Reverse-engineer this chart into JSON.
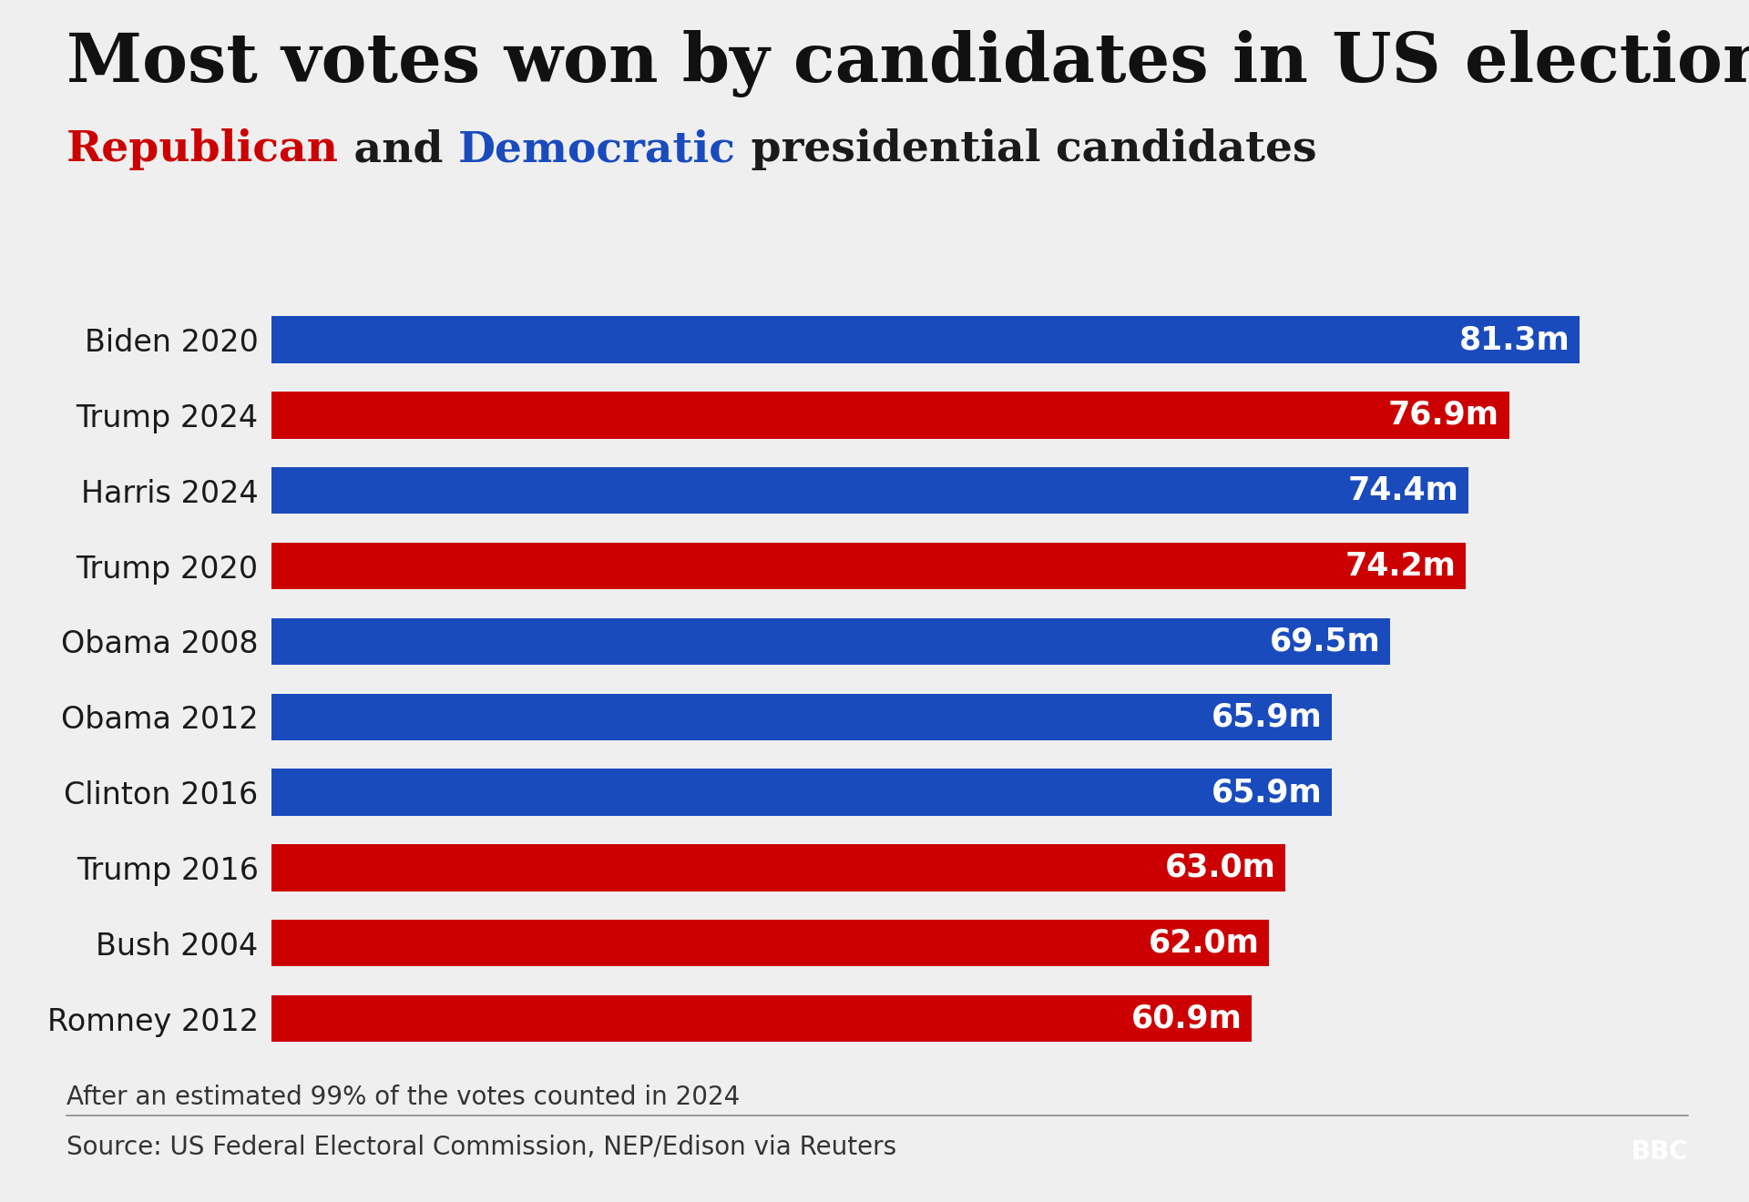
{
  "title": "Most votes won by candidates in US elections",
  "subtitle_parts": [
    {
      "text": "Republican",
      "color": "#cc0000"
    },
    {
      "text": " and ",
      "color": "#1a1a1a"
    },
    {
      "text": "Democratic",
      "color": "#1a4bbd"
    },
    {
      "text": " presidential candidates",
      "color": "#1a1a1a"
    }
  ],
  "categories": [
    "Biden 2020",
    "Trump 2024",
    "Harris 2024",
    "Trump 2020",
    "Obama 2008",
    "Obama 2012",
    "Clinton 2016",
    "Trump 2016",
    "Bush 2004",
    "Romney 2012"
  ],
  "values": [
    81.3,
    76.9,
    74.4,
    74.2,
    69.5,
    65.9,
    65.9,
    63.0,
    62.0,
    60.9
  ],
  "colors": [
    "#1a4bbd",
    "#cc0000",
    "#1a4bbd",
    "#cc0000",
    "#1a4bbd",
    "#1a4bbd",
    "#1a4bbd",
    "#cc0000",
    "#cc0000",
    "#cc0000"
  ],
  "labels": [
    "81.3m",
    "76.9m",
    "74.4m",
    "74.2m",
    "69.5m",
    "65.9m",
    "65.9m",
    "63.0m",
    "62.0m",
    "60.9m"
  ],
  "footnote": "After an estimated 99% of the votes counted in 2024",
  "source": "Source: US Federal Electoral Commission, NEP/Edison via Reuters",
  "background_color": "#efefef",
  "bar_text_color": "#ffffff",
  "title_color": "#111111",
  "axis_label_color": "#1a1a1a",
  "xlim": [
    0,
    88
  ],
  "title_fontsize": 54,
  "subtitle_fontsize": 34,
  "bar_label_fontsize": 25,
  "ytick_fontsize": 24,
  "footnote_fontsize": 20,
  "source_fontsize": 20
}
